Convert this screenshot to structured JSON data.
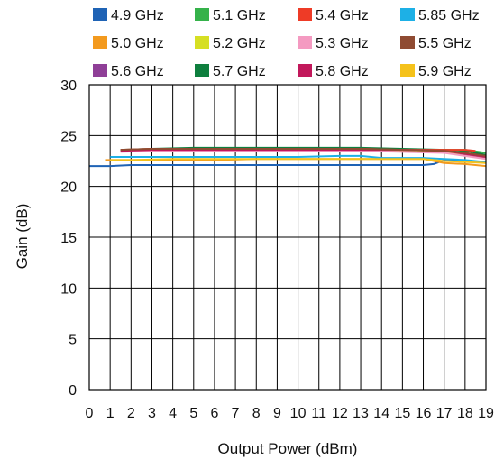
{
  "chart_data": {
    "type": "line",
    "title": "",
    "xlabel": "Output Power (dBm)",
    "ylabel": "Gain (dB)",
    "xlim": [
      0,
      19
    ],
    "ylim": [
      0,
      30
    ],
    "x_ticks": [
      0,
      1,
      2,
      3,
      4,
      5,
      6,
      7,
      8,
      9,
      10,
      11,
      12,
      13,
      14,
      15,
      16,
      17,
      18,
      19
    ],
    "y_ticks": [
      0,
      5,
      10,
      15,
      20,
      25,
      30
    ],
    "grid": true,
    "legend_position": "top",
    "series": [
      {
        "name": "4.9 GHz",
        "color": "#1f63b5",
        "x": [
          0,
          1,
          2,
          4,
          6,
          8,
          10,
          12,
          14,
          15,
          16,
          16.5,
          17,
          18,
          19
        ],
        "y": [
          22.0,
          22.0,
          22.1,
          22.1,
          22.1,
          22.1,
          22.1,
          22.1,
          22.1,
          22.1,
          22.1,
          22.2,
          22.6,
          22.5,
          22.4
        ]
      },
      {
        "name": "5.0 GHz",
        "color": "#f39a1e",
        "x": [
          0.8,
          2,
          4,
          6,
          8,
          10,
          12,
          14,
          16,
          17,
          18,
          19
        ],
        "y": [
          22.6,
          22.6,
          22.6,
          22.6,
          22.7,
          22.7,
          22.7,
          22.7,
          22.7,
          22.3,
          22.2,
          22.0
        ]
      },
      {
        "name": "5.6 GHz",
        "color": "#8f3f97",
        "x": [
          1.5,
          3,
          5,
          7,
          9,
          11,
          13,
          15,
          17,
          18,
          19
        ],
        "y": [
          23.5,
          23.6,
          23.6,
          23.6,
          23.6,
          23.6,
          23.6,
          23.5,
          23.4,
          23.1,
          22.8
        ]
      },
      {
        "name": "5.1 GHz",
        "color": "#35b24a",
        "x": [
          1.5,
          3,
          5,
          7,
          9,
          11,
          13,
          15,
          17,
          18,
          19
        ],
        "y": [
          23.5,
          23.6,
          23.7,
          23.7,
          23.7,
          23.7,
          23.7,
          23.6,
          23.6,
          23.6,
          23.3
        ]
      },
      {
        "name": "5.2 GHz",
        "color": "#d6df23",
        "x": [
          1.5,
          3,
          5,
          7,
          9,
          11,
          13,
          15,
          17,
          18,
          19
        ],
        "y": [
          23.5,
          23.5,
          23.6,
          23.6,
          23.6,
          23.6,
          23.6,
          23.5,
          23.4,
          23.2,
          22.9
        ]
      },
      {
        "name": "5.7 GHz",
        "color": "#0e7f3e",
        "x": [
          1.5,
          3,
          5,
          7,
          9,
          11,
          13,
          15,
          17,
          18,
          19
        ],
        "y": [
          23.6,
          23.7,
          23.8,
          23.8,
          23.8,
          23.8,
          23.8,
          23.7,
          23.6,
          23.5,
          23.1
        ]
      },
      {
        "name": "5.4 GHz",
        "color": "#ee3b26",
        "x": [
          1.5,
          3,
          5,
          7,
          9,
          11,
          13,
          15,
          17,
          18,
          18.5
        ],
        "y": [
          23.6,
          23.7,
          23.7,
          23.7,
          23.7,
          23.7,
          23.7,
          23.6,
          23.6,
          23.6,
          23.5
        ]
      },
      {
        "name": "5.3 GHz",
        "color": "#f49ac1",
        "x": [
          1.5,
          3,
          5,
          7,
          9,
          11,
          13,
          15,
          17,
          18,
          19
        ],
        "y": [
          23.4,
          23.5,
          23.5,
          23.5,
          23.5,
          23.5,
          23.5,
          23.4,
          23.3,
          23.0,
          22.7
        ]
      },
      {
        "name": "5.8 GHz",
        "color": "#c2185b",
        "x": [
          1.5,
          3,
          5,
          7,
          9,
          11,
          13,
          15,
          17,
          18,
          19
        ],
        "y": [
          23.5,
          23.6,
          23.6,
          23.6,
          23.6,
          23.6,
          23.6,
          23.6,
          23.5,
          23.2,
          22.9
        ]
      },
      {
        "name": "5.85 GHz",
        "color": "#1db0e6",
        "x": [
          1,
          2,
          4,
          6,
          8,
          10,
          12,
          13,
          14,
          16,
          17,
          18,
          19
        ],
        "y": [
          22.9,
          22.9,
          22.9,
          22.9,
          22.9,
          22.9,
          23.0,
          23.0,
          22.8,
          22.8,
          22.7,
          22.6,
          22.4
        ]
      },
      {
        "name": "5.5 GHz",
        "color": "#8f4b32",
        "x": [
          1.5,
          3,
          5,
          7,
          9,
          11,
          13,
          15,
          17,
          18,
          19
        ],
        "y": [
          23.6,
          23.7,
          23.7,
          23.7,
          23.7,
          23.7,
          23.7,
          23.6,
          23.5,
          23.3,
          23.0
        ]
      },
      {
        "name": "5.9 GHz",
        "color": "#f5c21b",
        "x": [
          1,
          2,
          4,
          6,
          8,
          10,
          12,
          14,
          16,
          17,
          18,
          19
        ],
        "y": [
          22.6,
          22.6,
          22.7,
          22.7,
          22.7,
          22.7,
          22.7,
          22.7,
          22.7,
          22.5,
          22.4,
          22.3
        ]
      }
    ],
    "legend": [
      {
        "name": "4.9 GHz",
        "color": "#1f63b5"
      },
      {
        "name": "5.1 GHz",
        "color": "#35b24a"
      },
      {
        "name": "5.4 GHz",
        "color": "#ee3b26"
      },
      {
        "name": "5.85 GHz",
        "color": "#1db0e6"
      },
      {
        "name": "5.0 GHz",
        "color": "#f39a1e"
      },
      {
        "name": "5.2 GHz",
        "color": "#d6df23"
      },
      {
        "name": "5.3 GHz",
        "color": "#f49ac1"
      },
      {
        "name": "5.5 GHz",
        "color": "#8f4b32"
      },
      {
        "name": "5.6 GHz",
        "color": "#8f3f97"
      },
      {
        "name": "5.7 GHz",
        "color": "#0e7f3e"
      },
      {
        "name": "5.8 GHz",
        "color": "#c2185b"
      },
      {
        "name": "5.9 GHz",
        "color": "#f5c21b"
      }
    ]
  }
}
